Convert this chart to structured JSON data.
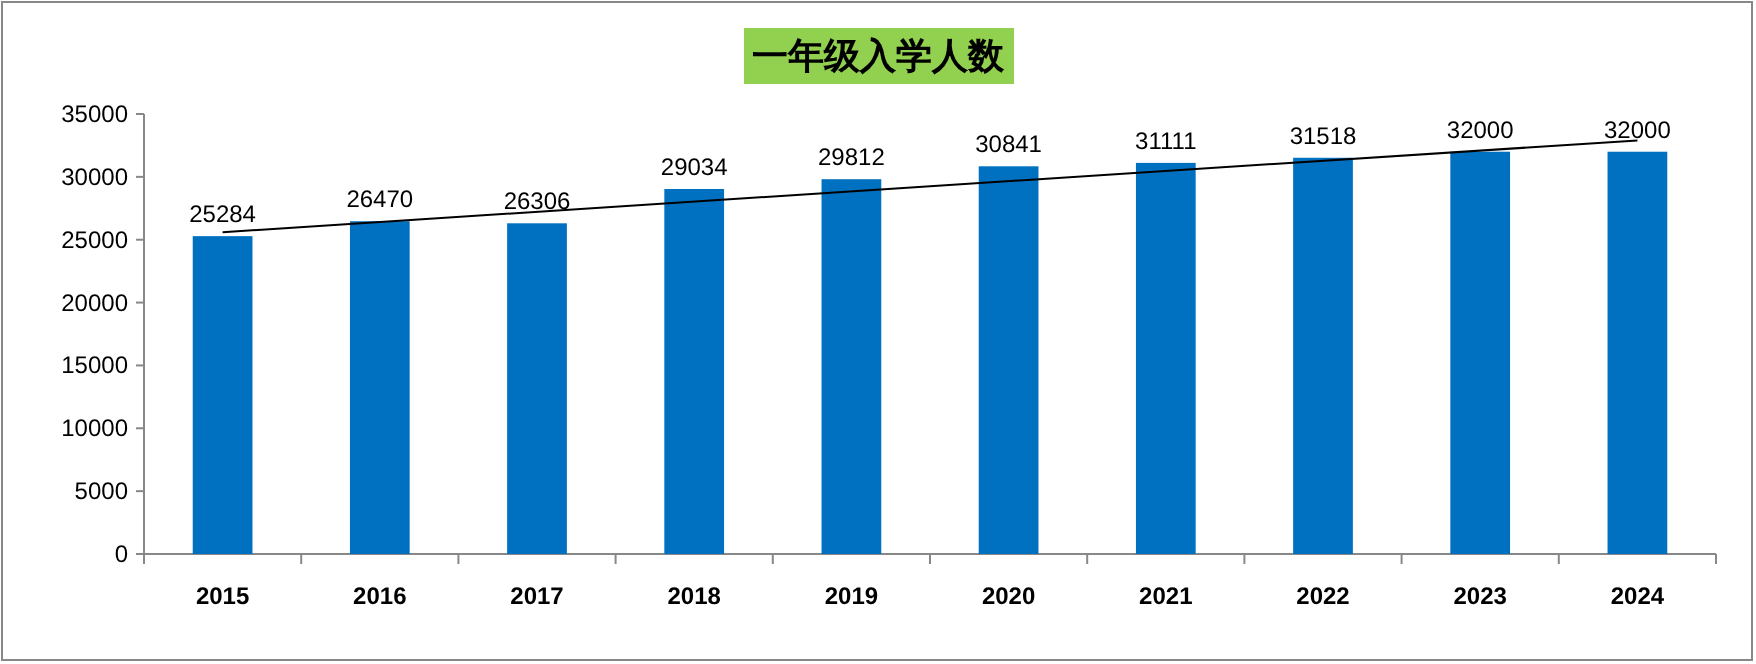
{
  "chart_data": {
    "type": "bar",
    "title": "一年级入学人数",
    "categories": [
      "2015",
      "2016",
      "2017",
      "2018",
      "2019",
      "2020",
      "2021",
      "2022",
      "2023",
      "2024"
    ],
    "series": [
      {
        "color": "#0070c0",
        "values": [
          25284,
          26470,
          26306,
          29034,
          29812,
          30841,
          31111,
          31518,
          32000,
          32000
        ],
        "value_labels": [
          "25284",
          "26470",
          "26306",
          "29034",
          "29812",
          "30841",
          "31111",
          "31518",
          "32000",
          "32000"
        ]
      },
      {
        "type": "line",
        "color": "#000000",
        "values": [
          25600,
          null,
          null,
          null,
          null,
          null,
          null,
          null,
          null,
          32900
        ]
      }
    ],
    "ylim": [
      0,
      35000
    ],
    "yticks": [
      0,
      5000,
      10000,
      15000,
      20000,
      25000,
      30000,
      35000
    ]
  }
}
